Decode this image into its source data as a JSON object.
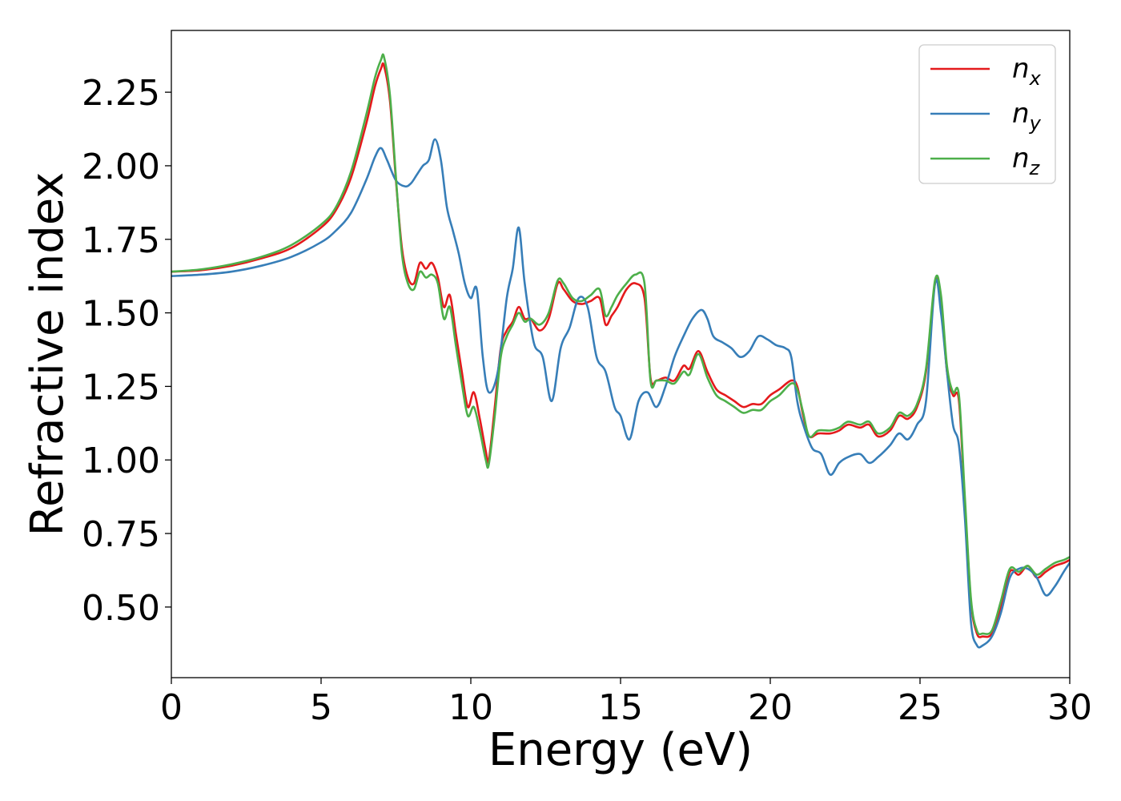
{
  "chart_data": {
    "type": "line",
    "xlabel": "Energy (eV)",
    "ylabel": "Refractive index",
    "xlim": [
      0,
      30
    ],
    "ylim": [
      0.26,
      2.46
    ],
    "x_ticks": [
      0,
      5,
      10,
      15,
      20,
      25,
      30
    ],
    "x_tick_labels": [
      "0",
      "5",
      "10",
      "15",
      "20",
      "25",
      "30"
    ],
    "y_ticks": [
      0.5,
      0.75,
      1.0,
      1.25,
      1.5,
      1.75,
      2.0,
      2.25
    ],
    "y_tick_labels": [
      "0.50",
      "0.75",
      "1.00",
      "1.25",
      "1.50",
      "1.75",
      "2.00",
      "2.25"
    ],
    "grid": false,
    "legend_position": "top-right",
    "series": [
      {
        "name": "n_x",
        "label_base": "n",
        "label_sub": "x",
        "color": "#e41a1c",
        "x": [
          0,
          1,
          2,
          3,
          4,
          5,
          5.5,
          6,
          6.5,
          6.8,
          7.0,
          7.1,
          7.3,
          7.5,
          7.7,
          7.9,
          8.1,
          8.3,
          8.5,
          8.7,
          8.9,
          9.1,
          9.3,
          9.5,
          9.7,
          9.9,
          10.1,
          10.3,
          10.5,
          10.6,
          10.8,
          11.0,
          11.2,
          11.4,
          11.6,
          11.8,
          12.0,
          12.3,
          12.6,
          12.9,
          13.1,
          13.4,
          13.7,
          14.0,
          14.3,
          14.5,
          14.7,
          14.9,
          15.2,
          15.5,
          15.8,
          16.0,
          16.2,
          16.5,
          16.8,
          17.1,
          17.3,
          17.6,
          17.9,
          18.2,
          18.5,
          18.8,
          19.1,
          19.4,
          19.7,
          20.0,
          20.3,
          20.7,
          20.9,
          21.1,
          21.3,
          21.6,
          22.0,
          22.3,
          22.6,
          23.0,
          23.3,
          23.6,
          24.0,
          24.3,
          24.6,
          24.9,
          25.2,
          25.5,
          25.7,
          25.9,
          26.1,
          26.3,
          26.5,
          26.7,
          26.9,
          27.1,
          27.4,
          27.7,
          28.0,
          28.3,
          28.6,
          28.9,
          29.2,
          29.5,
          29.8,
          30.0
        ],
        "y": [
          1.64,
          1.645,
          1.66,
          1.685,
          1.72,
          1.79,
          1.85,
          1.96,
          2.14,
          2.27,
          2.33,
          2.34,
          2.22,
          1.95,
          1.72,
          1.62,
          1.6,
          1.67,
          1.65,
          1.67,
          1.62,
          1.52,
          1.56,
          1.43,
          1.3,
          1.18,
          1.23,
          1.14,
          1.03,
          1.0,
          1.18,
          1.38,
          1.44,
          1.47,
          1.52,
          1.48,
          1.48,
          1.44,
          1.48,
          1.6,
          1.58,
          1.54,
          1.53,
          1.54,
          1.55,
          1.46,
          1.49,
          1.52,
          1.58,
          1.6,
          1.55,
          1.28,
          1.27,
          1.28,
          1.27,
          1.32,
          1.31,
          1.37,
          1.3,
          1.24,
          1.22,
          1.2,
          1.18,
          1.19,
          1.19,
          1.22,
          1.24,
          1.27,
          1.25,
          1.15,
          1.08,
          1.09,
          1.09,
          1.1,
          1.12,
          1.11,
          1.12,
          1.08,
          1.1,
          1.15,
          1.14,
          1.18,
          1.3,
          1.6,
          1.55,
          1.3,
          1.22,
          1.2,
          0.85,
          0.52,
          0.41,
          0.4,
          0.41,
          0.5,
          0.62,
          0.61,
          0.64,
          0.6,
          0.62,
          0.64,
          0.65,
          0.66
        ]
      },
      {
        "name": "n_y",
        "label_base": "n",
        "label_sub": "y",
        "color": "#377eb8",
        "x": [
          0,
          1,
          2,
          3,
          4,
          5,
          5.5,
          6,
          6.5,
          6.8,
          7.0,
          7.2,
          7.5,
          7.8,
          8.0,
          8.2,
          8.4,
          8.6,
          8.8,
          9.0,
          9.2,
          9.4,
          9.6,
          9.8,
          10.0,
          10.2,
          10.4,
          10.6,
          10.9,
          11.2,
          11.4,
          11.6,
          11.8,
          12.1,
          12.4,
          12.7,
          13.0,
          13.3,
          13.6,
          13.9,
          14.2,
          14.5,
          14.8,
          15.0,
          15.3,
          15.6,
          15.9,
          16.2,
          16.5,
          16.8,
          17.1,
          17.4,
          17.7,
          17.9,
          18.1,
          18.4,
          18.7,
          19.0,
          19.3,
          19.6,
          19.9,
          20.2,
          20.5,
          20.7,
          20.9,
          21.1,
          21.4,
          21.7,
          22.0,
          22.3,
          22.6,
          23.0,
          23.3,
          23.6,
          24.0,
          24.3,
          24.6,
          24.9,
          25.2,
          25.5,
          25.7,
          25.9,
          26.1,
          26.3,
          26.5,
          26.7,
          26.9,
          27.1,
          27.4,
          27.7,
          28.0,
          28.3,
          28.6,
          28.9,
          29.2,
          29.5,
          29.8,
          30.0
        ],
        "y": [
          1.625,
          1.63,
          1.64,
          1.66,
          1.69,
          1.74,
          1.78,
          1.84,
          1.95,
          2.03,
          2.06,
          2.02,
          1.95,
          1.93,
          1.94,
          1.97,
          2.0,
          2.02,
          2.09,
          2.02,
          1.86,
          1.78,
          1.7,
          1.6,
          1.55,
          1.58,
          1.35,
          1.23,
          1.3,
          1.55,
          1.65,
          1.79,
          1.6,
          1.4,
          1.35,
          1.2,
          1.38,
          1.45,
          1.55,
          1.52,
          1.35,
          1.3,
          1.18,
          1.15,
          1.07,
          1.2,
          1.23,
          1.18,
          1.25,
          1.35,
          1.42,
          1.48,
          1.51,
          1.48,
          1.42,
          1.4,
          1.38,
          1.35,
          1.37,
          1.42,
          1.41,
          1.39,
          1.38,
          1.35,
          1.2,
          1.12,
          1.04,
          1.02,
          0.95,
          0.99,
          1.01,
          1.02,
          0.99,
          1.01,
          1.05,
          1.09,
          1.07,
          1.12,
          1.2,
          1.6,
          1.5,
          1.3,
          1.12,
          1.05,
          0.8,
          0.45,
          0.37,
          0.37,
          0.4,
          0.48,
          0.6,
          0.63,
          0.63,
          0.6,
          0.54,
          0.57,
          0.62,
          0.65
        ]
      },
      {
        "name": "n_z",
        "label_base": "n",
        "label_sub": "z",
        "color": "#4daf4a",
        "x": [
          0,
          1,
          2,
          3,
          4,
          5,
          5.5,
          6,
          6.5,
          6.8,
          7.0,
          7.1,
          7.3,
          7.5,
          7.7,
          7.9,
          8.1,
          8.3,
          8.5,
          8.7,
          8.9,
          9.1,
          9.3,
          9.5,
          9.7,
          9.9,
          10.1,
          10.3,
          10.5,
          10.6,
          10.8,
          11.0,
          11.2,
          11.4,
          11.6,
          11.8,
          12.0,
          12.3,
          12.6,
          12.9,
          13.1,
          13.4,
          13.7,
          14.0,
          14.3,
          14.5,
          14.7,
          14.9,
          15.2,
          15.5,
          15.8,
          16.0,
          16.2,
          16.5,
          16.8,
          17.1,
          17.3,
          17.6,
          17.9,
          18.2,
          18.5,
          18.8,
          19.1,
          19.4,
          19.7,
          20.0,
          20.3,
          20.7,
          20.9,
          21.1,
          21.3,
          21.6,
          22.0,
          22.3,
          22.6,
          23.0,
          23.3,
          23.6,
          24.0,
          24.3,
          24.6,
          24.9,
          25.2,
          25.5,
          25.7,
          25.9,
          26.1,
          26.3,
          26.5,
          26.7,
          26.9,
          27.1,
          27.4,
          27.7,
          28.0,
          28.3,
          28.6,
          28.9,
          29.2,
          29.5,
          29.8,
          30.0
        ],
        "y": [
          1.64,
          1.648,
          1.665,
          1.69,
          1.73,
          1.8,
          1.86,
          1.98,
          2.17,
          2.3,
          2.36,
          2.37,
          2.24,
          1.96,
          1.7,
          1.6,
          1.58,
          1.64,
          1.62,
          1.63,
          1.6,
          1.48,
          1.52,
          1.39,
          1.26,
          1.15,
          1.18,
          1.1,
          1.0,
          0.985,
          1.15,
          1.35,
          1.42,
          1.46,
          1.5,
          1.47,
          1.48,
          1.46,
          1.5,
          1.61,
          1.6,
          1.55,
          1.54,
          1.56,
          1.58,
          1.49,
          1.52,
          1.56,
          1.6,
          1.63,
          1.6,
          1.27,
          1.27,
          1.27,
          1.26,
          1.3,
          1.29,
          1.36,
          1.28,
          1.22,
          1.2,
          1.18,
          1.16,
          1.17,
          1.17,
          1.2,
          1.22,
          1.26,
          1.24,
          1.16,
          1.08,
          1.1,
          1.1,
          1.11,
          1.13,
          1.12,
          1.13,
          1.09,
          1.11,
          1.16,
          1.15,
          1.19,
          1.31,
          1.61,
          1.56,
          1.32,
          1.23,
          1.22,
          0.87,
          0.53,
          0.42,
          0.41,
          0.42,
          0.52,
          0.63,
          0.62,
          0.64,
          0.61,
          0.63,
          0.65,
          0.66,
          0.67
        ]
      }
    ]
  }
}
